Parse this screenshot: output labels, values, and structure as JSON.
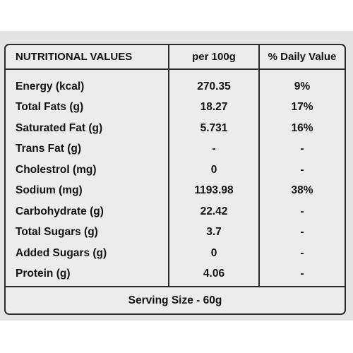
{
  "table": {
    "headers": {
      "name": "NUTRITIONAL VALUES",
      "per_100g": "per 100g",
      "daily_value": "% Daily Value"
    },
    "rows": [
      {
        "name": "Energy (kcal)",
        "per_100g": "270.35",
        "daily_value": "9%"
      },
      {
        "name": "Total Fats (g)",
        "per_100g": "18.27",
        "daily_value": "17%"
      },
      {
        "name": "Saturated Fat (g)",
        "per_100g": "5.731",
        "daily_value": "16%"
      },
      {
        "name": "Trans Fat (g)",
        "per_100g": "-",
        "daily_value": "-"
      },
      {
        "name": "Cholestrol (mg)",
        "per_100g": "0",
        "daily_value": "-"
      },
      {
        "name": "Sodium (mg)",
        "per_100g": "1193.98",
        "daily_value": "38%"
      },
      {
        "name": "Carbohydrate (g)",
        "per_100g": "22.42",
        "daily_value": "-"
      },
      {
        "name": "Total Sugars (g)",
        "per_100g": "3.7",
        "daily_value": "-"
      },
      {
        "name": "Added Sugars  (g)",
        "per_100g": "0",
        "daily_value": "-"
      },
      {
        "name": "Protein (g)",
        "per_100g": "4.06",
        "daily_value": "-"
      }
    ],
    "footer": "Serving Size - 60g"
  }
}
